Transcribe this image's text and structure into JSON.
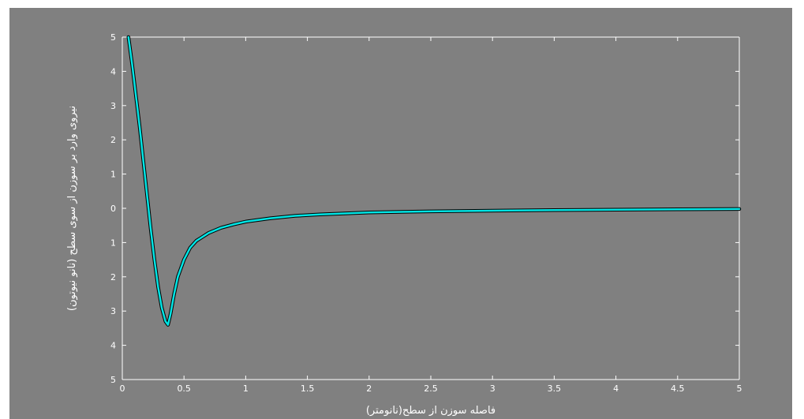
{
  "chart_data": {
    "type": "line",
    "xlabel": "فاصله سوزن از سطح(نانومتر)",
    "ylabel": "نیروی وارد بر سوزن از سوی سطح (نانو نیوتون)",
    "xlim": [
      0,
      5
    ],
    "ylim": [
      -5,
      5
    ],
    "x_ticks": [
      "0",
      "0.5",
      "1",
      "1.5",
      "2",
      "2.5",
      "3",
      "3.5",
      "4",
      "4.5",
      "5"
    ],
    "y_ticks": [
      "5",
      "4",
      "3",
      "2",
      "1",
      "0",
      "1",
      "2",
      "3",
      "4",
      "5"
    ],
    "grid": false,
    "series": [
      {
        "x": [
          0.05,
          0.08,
          0.11,
          0.14,
          0.17,
          0.2,
          0.23,
          0.26,
          0.29,
          0.32,
          0.35,
          0.37,
          0.39,
          0.42,
          0.45,
          0.5,
          0.55,
          0.6,
          0.7,
          0.8,
          0.9,
          1.0,
          1.2,
          1.4,
          1.6,
          1.8,
          2.0,
          2.5,
          3.0,
          3.5,
          4.0,
          4.5,
          5.0
        ],
        "y": [
          5.0,
          4.2,
          3.3,
          2.4,
          1.4,
          0.4,
          -0.6,
          -1.5,
          -2.3,
          -2.9,
          -3.3,
          -3.4,
          -3.1,
          -2.5,
          -2.0,
          -1.5,
          -1.15,
          -0.95,
          -0.72,
          -0.57,
          -0.47,
          -0.39,
          -0.29,
          -0.22,
          -0.18,
          -0.15,
          -0.12,
          -0.09,
          -0.07,
          -0.05,
          -0.04,
          -0.03,
          -0.02
        ]
      }
    ],
    "colors": {
      "background": "#808080",
      "axes": "#ffffff",
      "line": "#00e5e5",
      "line_shadow": "#000000"
    }
  }
}
